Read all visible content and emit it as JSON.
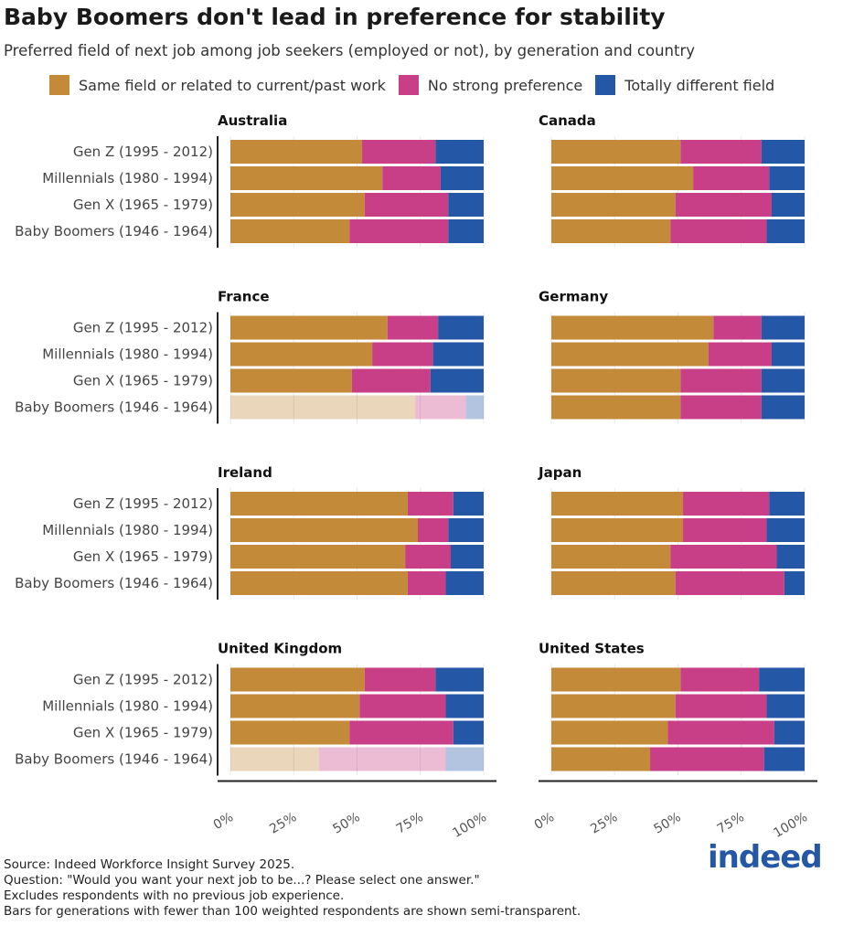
{
  "title": "Baby Boomers don't lead in preference for stability",
  "subtitle": "Preferred field of next job among job seekers (employed or not), by generation and country",
  "colors": {
    "same": "#C38A3A",
    "none": "#C83F88",
    "different": "#2457A5"
  },
  "legend": [
    "Same field or related to current/past work",
    "No strong preference",
    "Totally different field"
  ],
  "notes": [
    "Source: Indeed Workforce Insight Survey 2025.",
    "Question: \"Would you want your next job to be...? Please select one answer.\"",
    "Excludes respondents with no previous job experience.",
    "Bars for generations with fewer than 100 weighted respondents are shown semi-transparent."
  ],
  "logo": "indeed",
  "chart_data": {
    "type": "bar",
    "orientation": "horizontal-stacked-100",
    "categories": [
      "Gen Z (1995 - 2012)",
      "Millennials (1980 - 1994)",
      "Gen X (1965 - 1979)",
      "Baby Boomers (1946 - 1964)"
    ],
    "series_names": [
      "Same field or related to current/past work",
      "No strong preference",
      "Totally different field"
    ],
    "x_ticks": [
      "0%",
      "25%",
      "50%",
      "75%",
      "100%"
    ],
    "xlim": [
      0,
      100
    ],
    "grid": true,
    "legend_position": "top",
    "panels": [
      {
        "country": "Australia",
        "values": [
          [
            52,
            29,
            19
          ],
          [
            60,
            23,
            17
          ],
          [
            53,
            33,
            14
          ],
          [
            47,
            39,
            14
          ]
        ],
        "semi_transparent": [
          false,
          false,
          false,
          false
        ]
      },
      {
        "country": "Canada",
        "values": [
          [
            51,
            32,
            17
          ],
          [
            56,
            30,
            14
          ],
          [
            49,
            38,
            13
          ],
          [
            47,
            38,
            15
          ]
        ],
        "semi_transparent": [
          false,
          false,
          false,
          false
        ]
      },
      {
        "country": "France",
        "values": [
          [
            62,
            20,
            18
          ],
          [
            56,
            24,
            20
          ],
          [
            48,
            31,
            21
          ],
          [
            73,
            20,
            7
          ]
        ],
        "semi_transparent": [
          false,
          false,
          false,
          true
        ]
      },
      {
        "country": "Germany",
        "values": [
          [
            64,
            19,
            17
          ],
          [
            62,
            25,
            13
          ],
          [
            51,
            32,
            17
          ],
          [
            51,
            32,
            17
          ]
        ],
        "semi_transparent": [
          false,
          false,
          false,
          false
        ]
      },
      {
        "country": "Ireland",
        "values": [
          [
            70,
            18,
            12
          ],
          [
            74,
            12,
            14
          ],
          [
            69,
            18,
            13
          ],
          [
            70,
            15,
            15
          ]
        ],
        "semi_transparent": [
          false,
          false,
          false,
          false
        ]
      },
      {
        "country": "Japan",
        "values": [
          [
            52,
            34,
            14
          ],
          [
            52,
            33,
            15
          ],
          [
            47,
            42,
            11
          ],
          [
            49,
            43,
            8
          ]
        ],
        "semi_transparent": [
          false,
          false,
          false,
          false
        ]
      },
      {
        "country": "United Kingdom",
        "values": [
          [
            53,
            28,
            19
          ],
          [
            51,
            34,
            15
          ],
          [
            47,
            41,
            12
          ],
          [
            35,
            50,
            15
          ]
        ],
        "semi_transparent": [
          false,
          false,
          false,
          true
        ]
      },
      {
        "country": "United States",
        "values": [
          [
            51,
            31,
            18
          ],
          [
            49,
            36,
            15
          ],
          [
            46,
            42,
            12
          ],
          [
            39,
            45,
            16
          ]
        ],
        "semi_transparent": [
          false,
          false,
          false,
          false
        ]
      }
    ]
  }
}
